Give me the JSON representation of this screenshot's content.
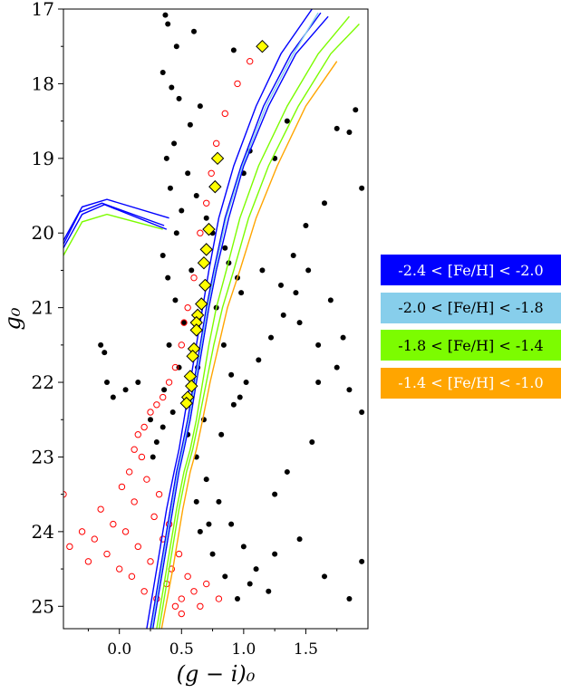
{
  "chart_data": {
    "type": "scatter",
    "title": "",
    "xlabel": "(g − i)₀",
    "ylabel": "g₀",
    "xlim": [
      -0.45,
      2.0
    ],
    "ylim": [
      25.3,
      17.0
    ],
    "y_inverted": true,
    "grid": false,
    "legend_placement": "right, outside plot",
    "xticks": [
      0.0,
      0.5,
      1.0,
      1.5
    ],
    "xtick_labels": [
      "0.0",
      "0.5",
      "1.0",
      "1.5"
    ],
    "yticks": [
      17,
      18,
      19,
      20,
      21,
      22,
      23,
      24,
      25
    ],
    "ytick_labels": [
      "17",
      "18",
      "19",
      "20",
      "21",
      "22",
      "23",
      "24",
      "25"
    ],
    "legend": [
      {
        "label": "-2.4 < [Fe/H] < -2.0",
        "color": "#0000ff",
        "text_color": "#ffffff"
      },
      {
        "label": "-2.0 < [Fe/H] < -1.8",
        "color": "#87ceeb",
        "text_color": "#000000"
      },
      {
        "label": "-1.8 < [Fe/H] < -1.4",
        "color": "#7cfc00",
        "text_color": "#000000"
      },
      {
        "label": "-1.4 < [Fe/H] < -1.0",
        "color": "#ffa500",
        "text_color": "#ffffff"
      }
    ],
    "colors": {
      "field_stars": "#000000",
      "members": "#ff0000",
      "rgb_highlight_fill": "#ffff00",
      "rgb_highlight_edge": "#000000"
    },
    "highlighted_rgb_stars": [
      [
        1.15,
        17.5
      ],
      [
        0.79,
        19.0
      ],
      [
        0.77,
        19.38
      ],
      [
        0.72,
        19.95
      ],
      [
        0.7,
        20.22
      ],
      [
        0.68,
        20.4
      ],
      [
        0.69,
        20.7
      ],
      [
        0.66,
        20.95
      ],
      [
        0.63,
        21.1
      ],
      [
        0.62,
        21.2
      ],
      [
        0.62,
        21.3
      ],
      [
        0.6,
        21.55
      ],
      [
        0.59,
        21.65
      ],
      [
        0.57,
        21.92
      ],
      [
        0.58,
        22.05
      ],
      [
        0.55,
        22.2
      ],
      [
        0.54,
        22.28
      ]
    ],
    "series_note": "isochrone lines per metallicity bin plus field (filled black) and member (open red) star points",
    "isochrones": [
      {
        "bin": 0,
        "x": [
          -0.45,
          -0.3,
          -0.1,
          0.4,
          null,
          0.22,
          0.3,
          0.38,
          0.44,
          0.48,
          0.52,
          0.57,
          0.62,
          0.67,
          0.72,
          0.8,
          0.92,
          1.1,
          1.3,
          1.55
        ],
        "y": [
          20.1,
          19.65,
          19.55,
          19.8,
          null,
          25.3,
          24.5,
          23.7,
          23.2,
          22.9,
          22.5,
          22.0,
          21.5,
          21.0,
          20.5,
          19.8,
          19.1,
          18.3,
          17.6,
          17.0
        ]
      },
      {
        "bin": 0,
        "x": [
          -0.45,
          -0.3,
          -0.12,
          0.38,
          null,
          0.25,
          0.33,
          0.41,
          0.46,
          0.5,
          0.55,
          0.6,
          0.65,
          0.7,
          0.76,
          0.85,
          0.98,
          1.16,
          1.38,
          1.62
        ],
        "y": [
          20.2,
          19.75,
          19.62,
          19.95,
          null,
          25.3,
          24.5,
          23.7,
          23.2,
          22.9,
          22.5,
          22.0,
          21.5,
          21.0,
          20.5,
          19.8,
          19.1,
          18.3,
          17.6,
          17.05
        ]
      },
      {
        "bin": 0,
        "x": [
          -0.45,
          -0.32,
          -0.14,
          0.36,
          null,
          0.27,
          0.35,
          0.43,
          0.48,
          0.52,
          0.57,
          0.62,
          0.67,
          0.72,
          0.78,
          0.88,
          1.0,
          1.2,
          1.42,
          1.68
        ],
        "y": [
          20.15,
          19.72,
          19.6,
          19.9,
          null,
          25.3,
          24.5,
          23.7,
          23.2,
          22.9,
          22.5,
          22.0,
          21.5,
          21.0,
          20.5,
          19.8,
          19.1,
          18.3,
          17.6,
          17.1
        ]
      },
      {
        "bin": 1,
        "x": [
          0.26,
          0.34,
          0.42,
          0.47,
          0.51,
          0.56,
          0.61,
          0.66,
          0.71,
          0.77,
          0.86,
          0.99,
          1.18,
          1.4,
          1.6
        ],
        "y": [
          25.3,
          24.5,
          23.7,
          23.2,
          22.9,
          22.5,
          22.0,
          21.5,
          21.0,
          20.5,
          19.8,
          19.1,
          18.3,
          17.6,
          17.05
        ]
      },
      {
        "bin": 2,
        "x": [
          -0.45,
          -0.3,
          -0.1,
          0.35,
          null,
          0.3,
          0.38,
          0.46,
          0.52,
          0.57,
          0.62,
          0.67,
          0.72,
          0.78,
          0.86,
          0.97,
          1.12,
          1.35,
          1.6,
          1.85
        ],
        "y": [
          20.3,
          19.85,
          19.75,
          19.95,
          null,
          25.3,
          24.5,
          23.7,
          23.2,
          22.9,
          22.5,
          22.0,
          21.5,
          21.0,
          20.5,
          19.8,
          19.1,
          18.3,
          17.6,
          17.1
        ]
      },
      {
        "bin": 2,
        "x": [
          0.32,
          0.4,
          0.48,
          0.54,
          0.59,
          0.64,
          0.7,
          0.76,
          0.83,
          0.92,
          1.04,
          1.2,
          1.44,
          1.7,
          1.93
        ],
        "y": [
          25.3,
          24.5,
          23.7,
          23.2,
          22.9,
          22.5,
          22.0,
          21.5,
          21.0,
          20.5,
          19.8,
          19.1,
          18.3,
          17.6,
          17.2
        ]
      },
      {
        "bin": 3,
        "x": [
          0.34,
          0.43,
          0.51,
          0.57,
          0.62,
          0.67,
          0.73,
          0.8,
          0.87,
          0.97,
          1.1,
          1.27,
          1.5,
          1.75
        ],
        "y": [
          25.3,
          24.5,
          23.7,
          23.2,
          22.9,
          22.5,
          22.0,
          21.5,
          21.0,
          20.5,
          19.8,
          19.1,
          18.3,
          17.7
        ]
      }
    ],
    "field_stars": [
      [
        0.37,
        17.08
      ],
      [
        0.39,
        17.2
      ],
      [
        0.46,
        17.5
      ],
      [
        0.6,
        17.3
      ],
      [
        0.92,
        17.55
      ],
      [
        0.35,
        17.85
      ],
      [
        0.42,
        18.05
      ],
      [
        0.48,
        18.2
      ],
      [
        0.57,
        18.55
      ],
      [
        0.44,
        18.8
      ],
      [
        0.38,
        19.0
      ],
      [
        0.41,
        19.4
      ],
      [
        0.5,
        19.7
      ],
      [
        0.46,
        20.0
      ],
      [
        0.35,
        20.3
      ],
      [
        0.39,
        20.6
      ],
      [
        0.45,
        20.9
      ],
      [
        0.52,
        21.2
      ],
      [
        0.4,
        21.5
      ],
      [
        0.48,
        21.8
      ],
      [
        0.36,
        22.1
      ],
      [
        0.43,
        22.4
      ],
      [
        0.55,
        22.7
      ],
      [
        0.62,
        23.0
      ],
      [
        0.7,
        23.3
      ],
      [
        0.8,
        23.6
      ],
      [
        0.9,
        23.9
      ],
      [
        1.0,
        24.2
      ],
      [
        1.1,
        24.5
      ],
      [
        1.2,
        24.8
      ],
      [
        1.15,
        20.5
      ],
      [
        1.3,
        20.7
      ],
      [
        1.45,
        21.2
      ],
      [
        1.6,
        21.5
      ],
      [
        1.75,
        21.8
      ],
      [
        1.85,
        22.1
      ],
      [
        1.95,
        22.4
      ],
      [
        1.55,
        22.8
      ],
      [
        1.35,
        23.2
      ],
      [
        1.25,
        23.5
      ],
      [
        1.9,
        18.35
      ],
      [
        1.75,
        18.6
      ],
      [
        1.85,
        18.65
      ],
      [
        1.5,
        19.9
      ],
      [
        1.65,
        19.6
      ],
      [
        1.95,
        19.4
      ],
      [
        1.4,
        20.3
      ],
      [
        1.7,
        20.9
      ],
      [
        1.8,
        21.4
      ],
      [
        1.6,
        22.0
      ],
      [
        -0.15,
        21.5
      ],
      [
        -0.12,
        21.6
      ],
      [
        -0.1,
        22.0
      ],
      [
        -0.05,
        22.2
      ],
      [
        0.05,
        22.1
      ],
      [
        0.15,
        22.0
      ],
      [
        0.25,
        22.5
      ],
      [
        0.3,
        22.8
      ],
      [
        0.27,
        23.0
      ],
      [
        0.35,
        22.6
      ],
      [
        0.65,
        24.0
      ],
      [
        0.75,
        24.3
      ],
      [
        0.85,
        24.6
      ],
      [
        0.95,
        24.9
      ],
      [
        1.05,
        24.7
      ],
      [
        1.25,
        24.3
      ],
      [
        1.45,
        24.1
      ],
      [
        1.65,
        24.6
      ],
      [
        1.85,
        24.9
      ],
      [
        1.95,
        24.4
      ],
      [
        0.62,
        23.6
      ],
      [
        0.72,
        23.9
      ],
      [
        0.82,
        22.7
      ],
      [
        0.92,
        22.3
      ],
      [
        1.02,
        22.0
      ],
      [
        1.12,
        21.7
      ],
      [
        1.22,
        21.4
      ],
      [
        1.32,
        21.1
      ],
      [
        1.42,
        20.8
      ],
      [
        1.52,
        20.5
      ],
      [
        0.7,
        19.8
      ],
      [
        0.75,
        20.0
      ],
      [
        0.85,
        20.2
      ],
      [
        0.88,
        20.4
      ],
      [
        0.95,
        20.6
      ],
      [
        0.98,
        20.8
      ],
      [
        0.78,
        21.0
      ],
      [
        0.84,
        21.5
      ],
      [
        0.9,
        21.9
      ],
      [
        0.97,
        22.2
      ],
      [
        1.0,
        19.2
      ],
      [
        1.05,
        18.9
      ],
      [
        1.25,
        19.0
      ],
      [
        1.35,
        18.5
      ],
      [
        0.65,
        18.3
      ],
      [
        0.55,
        19.2
      ],
      [
        0.62,
        19.5
      ],
      [
        0.58,
        20.5
      ],
      [
        0.63,
        21.8
      ],
      [
        0.68,
        22.5
      ]
    ],
    "member_stars": [
      [
        -0.45,
        23.5
      ],
      [
        -0.4,
        24.2
      ],
      [
        -0.3,
        24.0
      ],
      [
        -0.25,
        24.4
      ],
      [
        -0.2,
        24.1
      ],
      [
        -0.15,
        23.7
      ],
      [
        -0.1,
        24.3
      ],
      [
        -0.05,
        23.9
      ],
      [
        0.0,
        24.5
      ],
      [
        0.02,
        23.4
      ],
      [
        0.05,
        24.0
      ],
      [
        0.08,
        23.2
      ],
      [
        0.1,
        24.6
      ],
      [
        0.12,
        23.6
      ],
      [
        0.15,
        24.2
      ],
      [
        0.18,
        23.0
      ],
      [
        0.2,
        24.8
      ],
      [
        0.22,
        23.3
      ],
      [
        0.25,
        24.4
      ],
      [
        0.28,
        23.8
      ],
      [
        0.3,
        24.9
      ],
      [
        0.32,
        23.5
      ],
      [
        0.35,
        24.1
      ],
      [
        0.38,
        24.7
      ],
      [
        0.4,
        23.9
      ],
      [
        0.42,
        24.5
      ],
      [
        0.45,
        25.0
      ],
      [
        0.48,
        24.3
      ],
      [
        0.5,
        24.9
      ],
      [
        0.55,
        24.6
      ],
      [
        0.6,
        24.8
      ],
      [
        0.7,
        24.7
      ],
      [
        0.8,
        24.9
      ],
      [
        0.65,
        25.0
      ],
      [
        0.5,
        25.1
      ],
      [
        0.15,
        22.7
      ],
      [
        0.12,
        22.9
      ],
      [
        0.2,
        22.6
      ],
      [
        0.25,
        22.4
      ],
      [
        0.3,
        22.3
      ],
      [
        0.35,
        22.2
      ],
      [
        0.4,
        22.0
      ],
      [
        0.45,
        21.8
      ],
      [
        0.5,
        21.5
      ],
      [
        0.52,
        21.2
      ],
      [
        0.55,
        21.0
      ],
      [
        0.6,
        20.6
      ],
      [
        0.65,
        20.0
      ],
      [
        0.7,
        19.6
      ],
      [
        0.74,
        19.2
      ],
      [
        0.78,
        18.8
      ],
      [
        0.85,
        18.4
      ],
      [
        0.95,
        18.0
      ],
      [
        1.05,
        17.7
      ]
    ]
  }
}
